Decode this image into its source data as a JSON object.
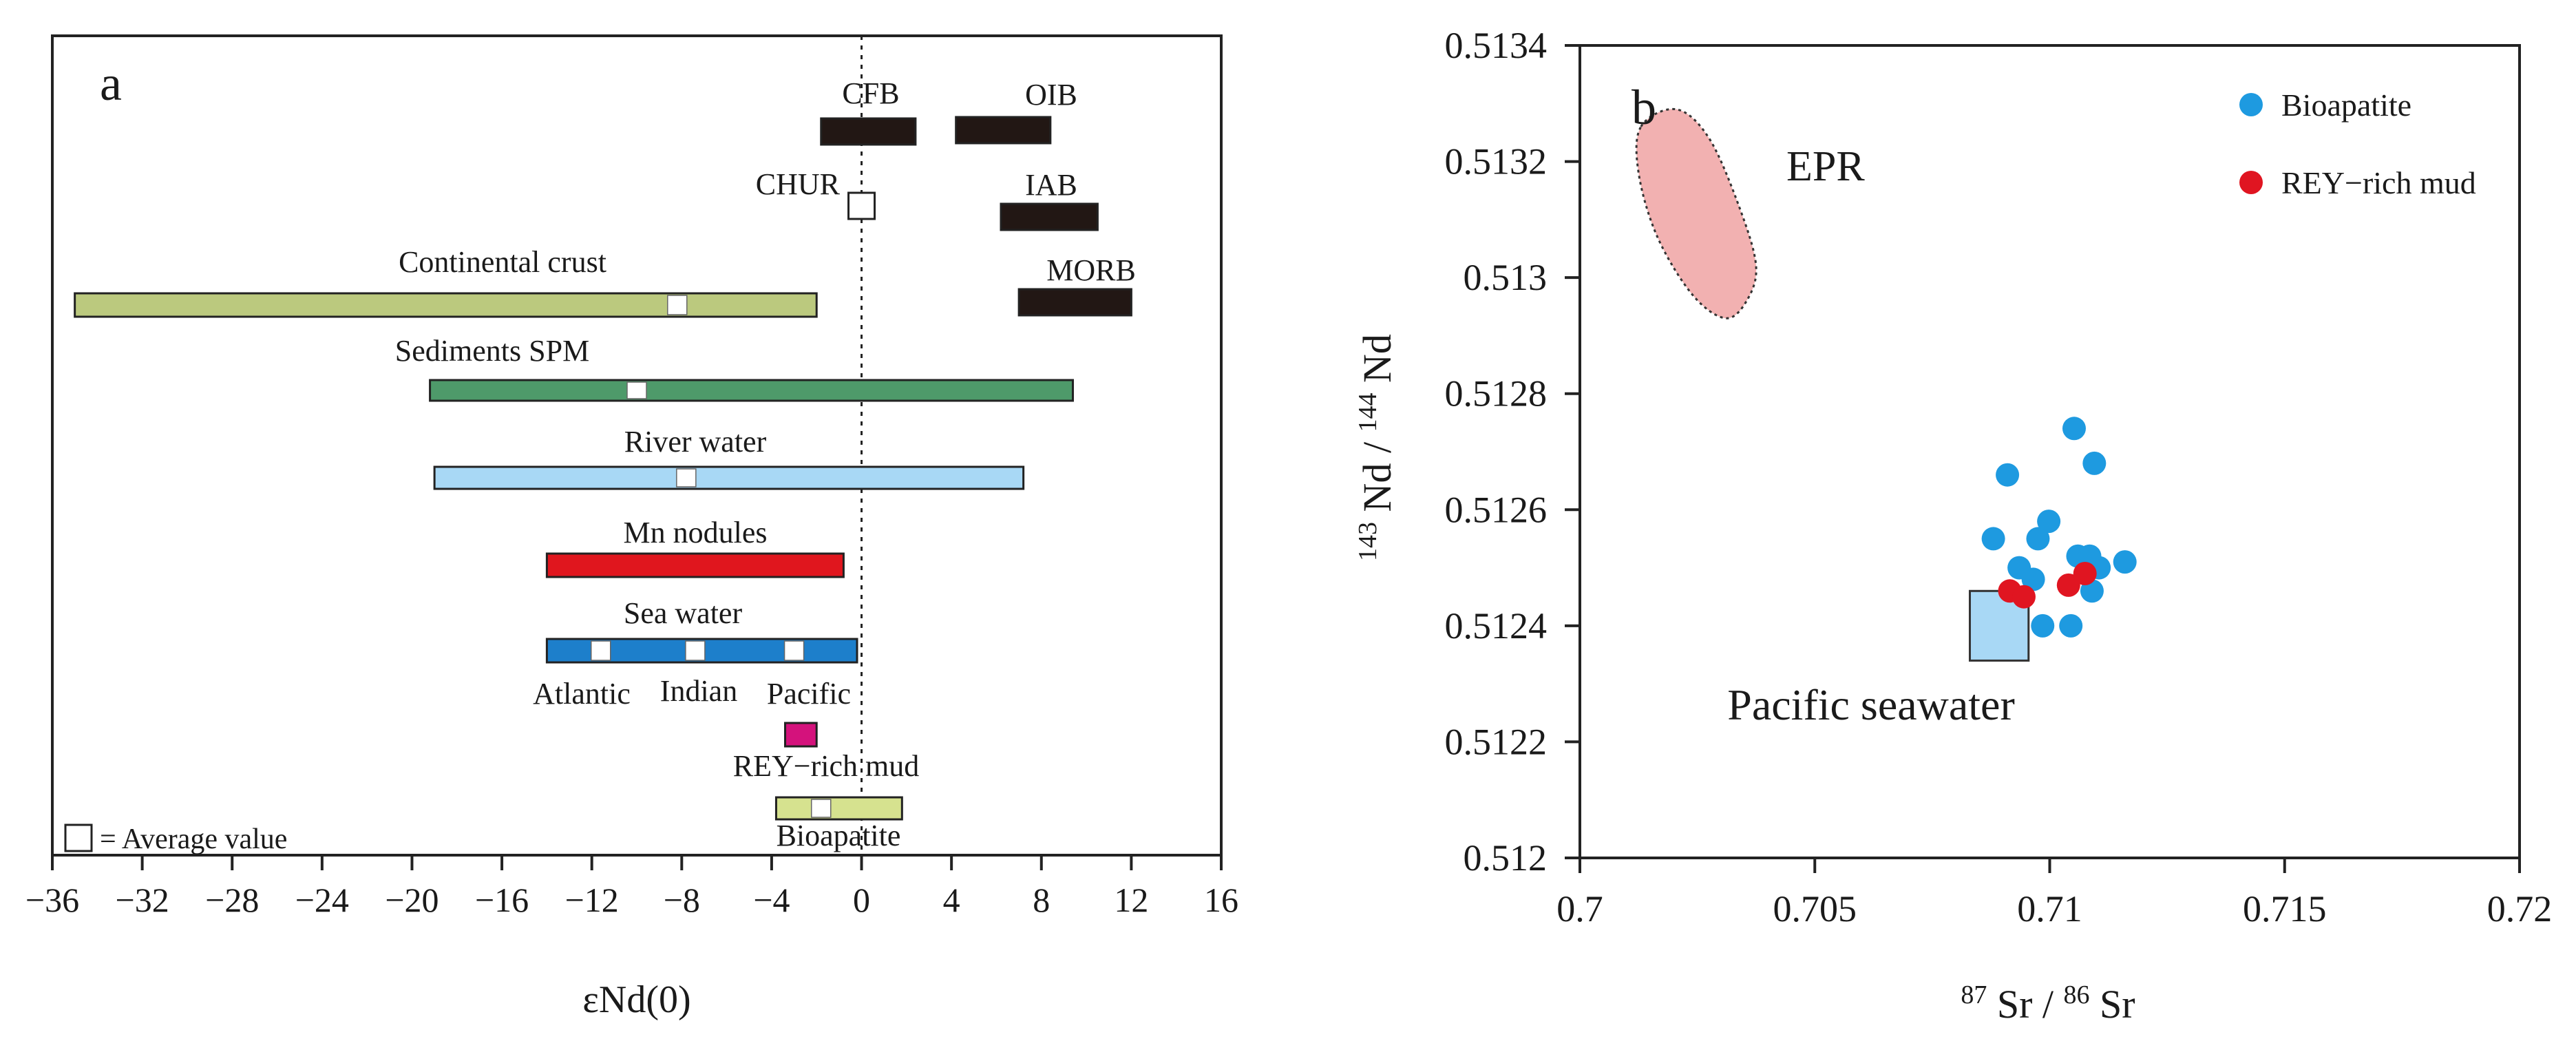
{
  "chart_data": [
    {
      "type": "range-bar",
      "panel_label": "a",
      "xlabel": "εNd(0)",
      "xlim": [
        -36,
        16
      ],
      "xticks": [
        -36,
        -32,
        -28,
        -24,
        -20,
        -16,
        -12,
        -8,
        -4,
        0,
        4,
        8,
        12,
        16
      ],
      "reference_line_x": 0,
      "reference_line_label": "CHUR",
      "chur_value": 0,
      "legend_text": "= Average value",
      "ranges": [
        {
          "name": "CFB",
          "min": -1.8,
          "max": 2.4,
          "color": "#221714",
          "averages": []
        },
        {
          "name": "OIB",
          "min": 4.2,
          "max": 8.4,
          "color": "#221714",
          "averages": []
        },
        {
          "name": "IAB",
          "min": 6.2,
          "max": 10.5,
          "color": "#221714",
          "averages": []
        },
        {
          "name": "MORB",
          "min": 7.0,
          "max": 12.0,
          "color": "#221714",
          "averages": []
        },
        {
          "name": "Continental crust",
          "min": -35,
          "max": -2.0,
          "color": "#bbc97e",
          "averages": [
            -8.2
          ]
        },
        {
          "name": "Sediments SPM",
          "min": -19.2,
          "max": 9.4,
          "color": "#4e9a6a",
          "averages": [
            -10.0
          ]
        },
        {
          "name": "River water",
          "min": -19.0,
          "max": 7.2,
          "color": "#a8d8f5",
          "averages": [
            -7.8
          ]
        },
        {
          "name": "Mn nodules",
          "min": -14.0,
          "max": -0.8,
          "color": "#e0161e",
          "averages": []
        },
        {
          "name": "Sea water",
          "min": -14.0,
          "max": -0.2,
          "color": "#1d7fcb",
          "averages": [
            -11.6,
            -7.4,
            -3.0
          ]
        },
        {
          "name": "REY−rich mud",
          "min": -3.4,
          "max": -2.0,
          "color": "#d4127c",
          "averages": []
        },
        {
          "name": "Bioapatite",
          "min": -3.8,
          "max": 1.8,
          "color": "#d6e28f",
          "averages": [
            -1.8
          ]
        }
      ],
      "sub_labels": [
        "Atlantic",
        "Indian",
        "Pacific"
      ]
    },
    {
      "type": "scatter",
      "panel_label": "b",
      "xlabel": "87 Sr / 86 Sr",
      "ylabel": "143 Nd / 144 Nd",
      "xlim": [
        0.7,
        0.72
      ],
      "ylim": [
        0.512,
        0.5134
      ],
      "xticks": [
        0.7,
        0.705,
        0.71,
        0.715,
        0.72
      ],
      "xtick_labels": [
        "0.7",
        "0.705",
        "0.71",
        "0.715",
        "0.72"
      ],
      "yticks": [
        0.512,
        0.5122,
        0.5124,
        0.5126,
        0.5128,
        0.513,
        0.5132,
        0.5134
      ],
      "ytick_labels": [
        "0.512",
        "0.5122",
        "0.5124",
        "0.5126",
        "0.5128",
        "0.513",
        "0.5132",
        "0.5134"
      ],
      "series": [
        {
          "name": "Bioapatite",
          "color": "#1e9ae0",
          "points": [
            [
              0.7091,
              0.51266
            ],
            [
              0.71052,
              0.51274
            ],
            [
              0.71095,
              0.51268
            ],
            [
              0.7088,
              0.51255
            ],
            [
              0.70998,
              0.51258
            ],
            [
              0.70975,
              0.51255
            ],
            [
              0.70935,
              0.5125
            ],
            [
              0.70965,
              0.51248
            ],
            [
              0.7106,
              0.51252
            ],
            [
              0.71085,
              0.51252
            ],
            [
              0.71105,
              0.5125
            ],
            [
              0.7116,
              0.51251
            ],
            [
              0.7109,
              0.51246
            ],
            [
              0.70985,
              0.5124
            ],
            [
              0.71045,
              0.5124
            ]
          ]
        },
        {
          "name": "REY−rich mud",
          "color": "#e01521",
          "points": [
            [
              0.70915,
              0.51246
            ],
            [
              0.70945,
              0.51245
            ],
            [
              0.7104,
              0.51247
            ],
            [
              0.71075,
              0.51249
            ]
          ]
        }
      ],
      "regions": [
        {
          "name": "EPR",
          "color": "#f2b1b1",
          "outline": [
            [
              0.7013,
              0.51326
            ],
            [
              0.70205,
              0.51329
            ],
            [
              0.70275,
              0.51324
            ],
            [
              0.7034,
              0.51312
            ],
            [
              0.70375,
              0.51302
            ],
            [
              0.70355,
              0.51296
            ],
            [
              0.7031,
              0.51293
            ],
            [
              0.7024,
              0.51297
            ],
            [
              0.70165,
              0.51307
            ],
            [
              0.70125,
              0.51318
            ]
          ]
        },
        {
          "name": "Pacific seawater",
          "color": "#a8d8f5",
          "x_range": [
            0.7083,
            0.70955
          ],
          "y_range": [
            0.51234,
            0.51246
          ]
        }
      ]
    }
  ]
}
